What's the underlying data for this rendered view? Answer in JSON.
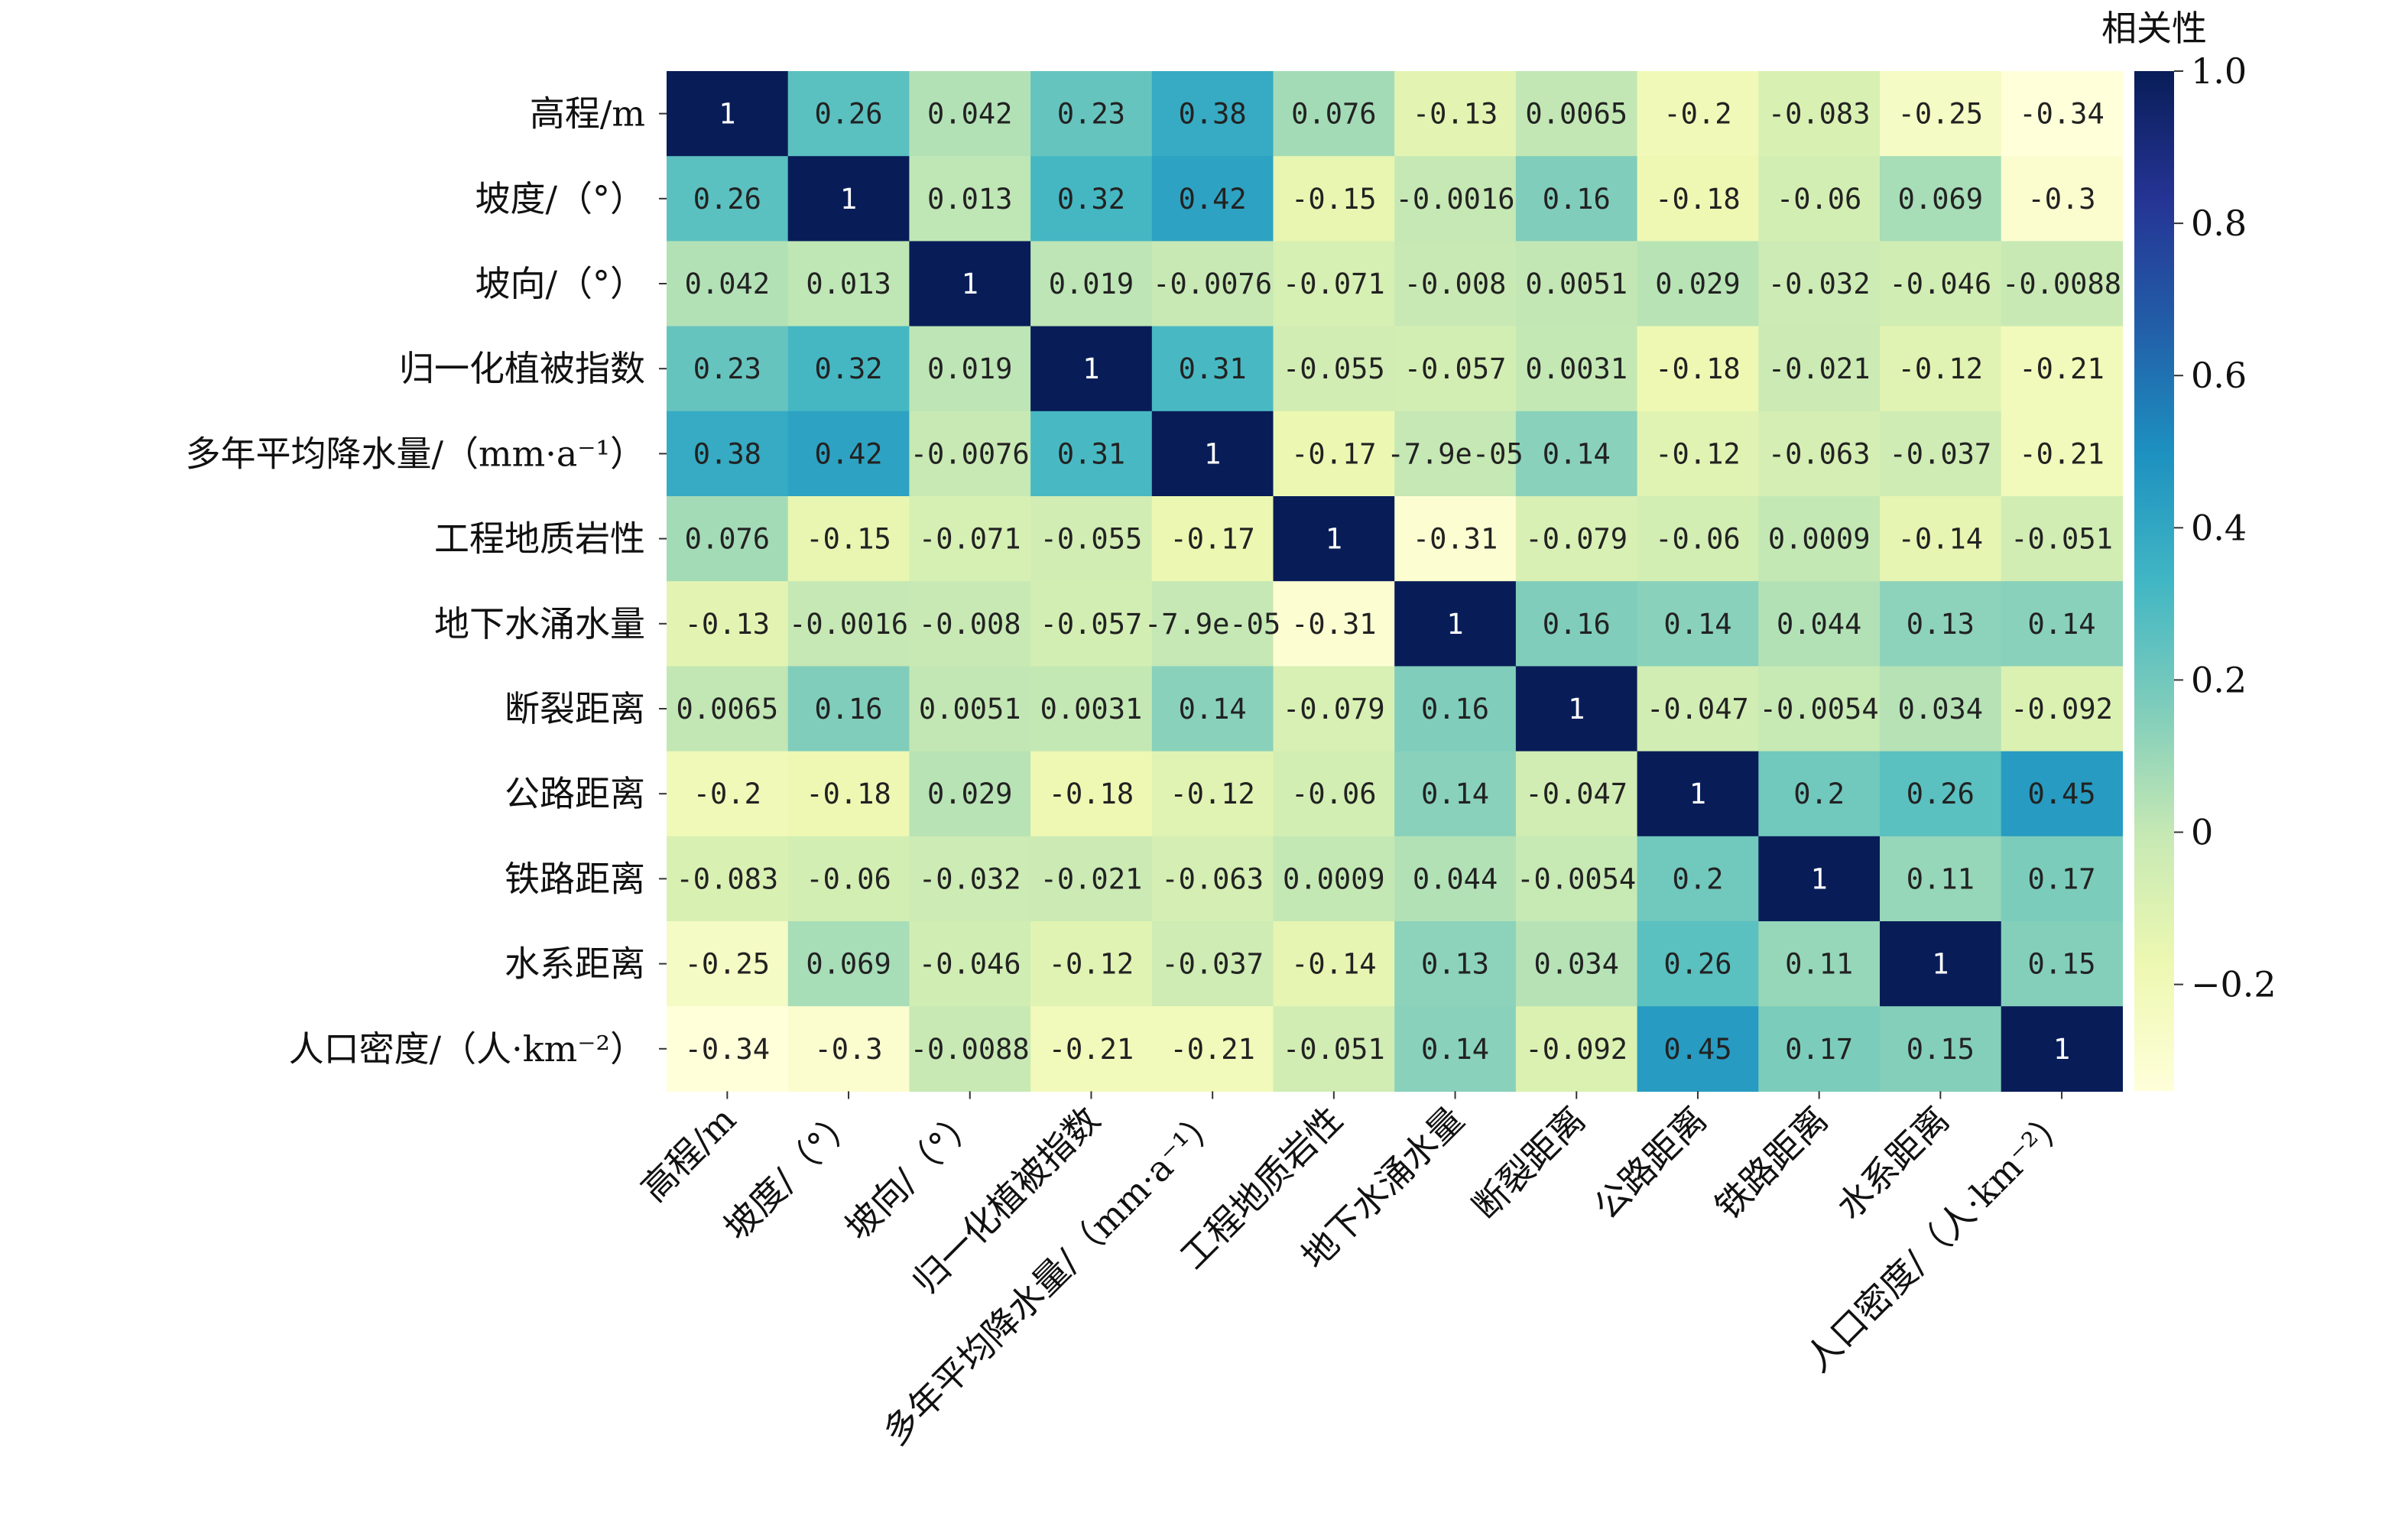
{
  "chart_data": {
    "type": "heatmap",
    "labels": [
      "高程/m",
      "坡度/（°）",
      "坡向/（°）",
      "归一化植被指数",
      "多年平均降水量/（mm·a⁻¹）",
      "工程地质岩性",
      "地下水涌水量",
      "断裂距离",
      "公路距离",
      "铁路距离",
      "水系距离",
      "人口密度/（人·km⁻²）"
    ],
    "values": [
      [
        1,
        0.26,
        0.042,
        0.23,
        0.38,
        0.076,
        -0.13,
        0.0065,
        -0.2,
        -0.083,
        -0.25,
        -0.34
      ],
      [
        0.26,
        1,
        0.013,
        0.32,
        0.42,
        -0.15,
        -0.0016,
        0.16,
        -0.18,
        -0.06,
        0.069,
        -0.3
      ],
      [
        0.042,
        0.013,
        1,
        0.019,
        -0.0076,
        -0.071,
        -0.008,
        0.0051,
        0.029,
        -0.032,
        -0.046,
        -0.0088
      ],
      [
        0.23,
        0.32,
        0.019,
        1,
        0.31,
        -0.055,
        -0.057,
        0.0031,
        -0.18,
        -0.021,
        -0.12,
        -0.21
      ],
      [
        0.38,
        0.42,
        -0.0076,
        0.31,
        1,
        -0.17,
        -7.9e-05,
        0.14,
        -0.12,
        -0.063,
        -0.037,
        -0.21
      ],
      [
        0.076,
        -0.15,
        -0.071,
        -0.055,
        -0.17,
        1,
        -0.31,
        -0.079,
        -0.06,
        0.0009,
        -0.14,
        -0.051
      ],
      [
        -0.13,
        -0.0016,
        -0.008,
        -0.057,
        -7.9e-05,
        -0.31,
        1,
        0.16,
        0.14,
        0.044,
        0.13,
        0.14
      ],
      [
        0.0065,
        0.16,
        0.0051,
        0.0031,
        0.14,
        -0.079,
        0.16,
        1,
        -0.047,
        -0.0054,
        0.034,
        -0.092
      ],
      [
        -0.2,
        -0.18,
        0.029,
        -0.18,
        -0.12,
        -0.06,
        0.14,
        -0.047,
        1,
        0.2,
        0.26,
        0.45
      ],
      [
        -0.083,
        -0.06,
        -0.032,
        -0.021,
        -0.063,
        0.0009,
        0.044,
        -0.0054,
        0.2,
        1,
        0.11,
        0.17
      ],
      [
        -0.25,
        0.069,
        -0.046,
        -0.12,
        -0.037,
        -0.14,
        0.13,
        0.034,
        0.26,
        0.11,
        1,
        0.15
      ],
      [
        -0.34,
        -0.3,
        -0.0088,
        -0.21,
        -0.21,
        -0.051,
        0.14,
        -0.092,
        0.45,
        0.17,
        0.15,
        1
      ]
    ],
    "annotations": [
      [
        "1",
        "0.26",
        "0.042",
        "0.23",
        "0.38",
        "0.076",
        "-0.13",
        "0.0065",
        "-0.2",
        "-0.083",
        "-0.25",
        "-0.34"
      ],
      [
        "0.26",
        "1",
        "0.013",
        "0.32",
        "0.42",
        "-0.15",
        "-0.0016",
        "0.16",
        "-0.18",
        "-0.06",
        "0.069",
        "-0.3"
      ],
      [
        "0.042",
        "0.013",
        "1",
        "0.019",
        "-0.0076",
        "-0.071",
        "-0.008",
        "0.0051",
        "0.029",
        "-0.032",
        "-0.046",
        "-0.0088"
      ],
      [
        "0.23",
        "0.32",
        "0.019",
        "1",
        "0.31",
        "-0.055",
        "-0.057",
        "0.0031",
        "-0.18",
        "-0.021",
        "-0.12",
        "-0.21"
      ],
      [
        "0.38",
        "0.42",
        "-0.0076",
        "0.31",
        "1",
        "-0.17",
        "-7.9e-05",
        "0.14",
        "-0.12",
        "-0.063",
        "-0.037",
        "-0.21"
      ],
      [
        "0.076",
        "-0.15",
        "-0.071",
        "-0.055",
        "-0.17",
        "1",
        "-0.31",
        "-0.079",
        "-0.06",
        "0.0009",
        "-0.14",
        "-0.051"
      ],
      [
        "-0.13",
        "-0.0016",
        "-0.008",
        "-0.057",
        "-7.9e-05",
        "-0.31",
        "1",
        "0.16",
        "0.14",
        "0.044",
        "0.13",
        "0.14"
      ],
      [
        "0.0065",
        "0.16",
        "0.0051",
        "0.0031",
        "0.14",
        "-0.079",
        "0.16",
        "1",
        "-0.047",
        "-0.0054",
        "0.034",
        "-0.092"
      ],
      [
        "-0.2",
        "-0.18",
        "0.029",
        "-0.18",
        "-0.12",
        "-0.06",
        "0.14",
        "-0.047",
        "1",
        "0.2",
        "0.26",
        "0.45"
      ],
      [
        "-0.083",
        "-0.06",
        "-0.032",
        "-0.021",
        "-0.063",
        "0.0009",
        "0.044",
        "-0.0054",
        "0.2",
        "1",
        "0.11",
        "0.17"
      ],
      [
        "-0.25",
        "0.069",
        "-0.046",
        "-0.12",
        "-0.037",
        "-0.14",
        "0.13",
        "0.034",
        "0.26",
        "0.11",
        "1",
        "0.15"
      ],
      [
        "-0.34",
        "-0.3",
        "-0.0088",
        "-0.21",
        "-0.21",
        "-0.051",
        "0.14",
        "-0.092",
        "0.45",
        "0.17",
        "0.15",
        "1"
      ]
    ],
    "colorbar": {
      "title": "相关性",
      "vmin": -0.34,
      "vmax": 1.0,
      "ticks": [
        1.0,
        0.8,
        0.6,
        0.4,
        0.2,
        0,
        -0.2
      ],
      "tick_labels": [
        "1.0",
        "0.8",
        "0.6",
        "0.4",
        "0.2",
        "0",
        "−0.2"
      ],
      "colormap": "YlGnBu"
    },
    "colors": {
      "text_dark": "#222222",
      "text_light": "#ffffff",
      "colormap_stops": [
        "#ffffd9",
        "#edf8b1",
        "#c7e9b4",
        "#7fcdbb",
        "#41b6c4",
        "#1d91c0",
        "#225ea8",
        "#253494",
        "#081d58"
      ]
    },
    "grid": false
  }
}
